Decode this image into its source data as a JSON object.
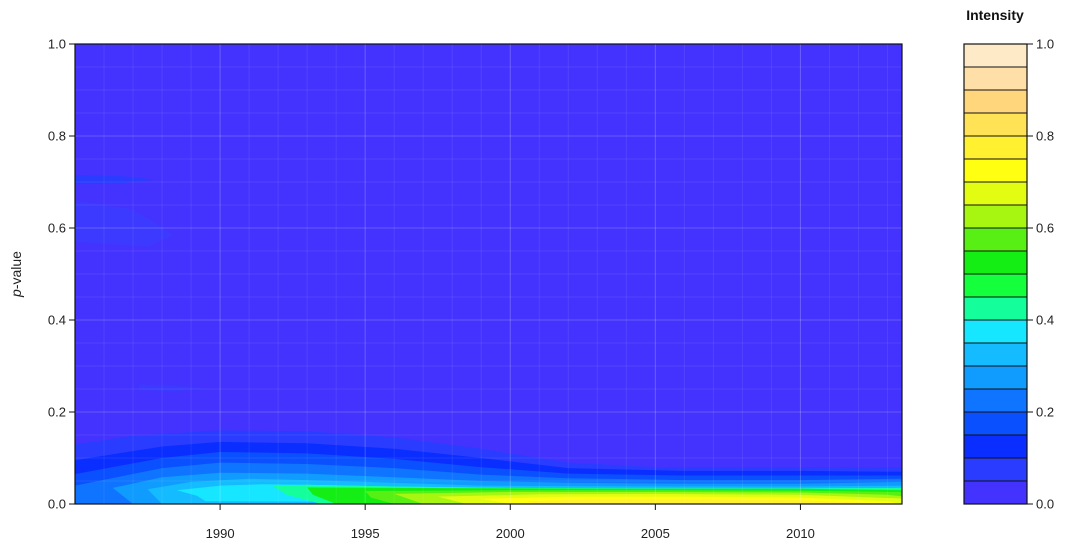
{
  "chart_data": {
    "type": "heatmap",
    "xlabel": "",
    "ylabel": "p-value",
    "ylabel_italic_part": "p",
    "ylabel_rest": "-value",
    "xlim": [
      1985,
      2013.5
    ],
    "ylim": [
      0,
      1
    ],
    "x_ticks": [
      "1990",
      "1995",
      "2000",
      "2005",
      "2010"
    ],
    "x_tick_values": [
      1990,
      1995,
      2000,
      2005,
      2010
    ],
    "y_ticks": [
      "0.0",
      "0.2",
      "0.4",
      "0.6",
      "0.8",
      "1.0"
    ],
    "y_tick_values": [
      0,
      0.2,
      0.4,
      0.6,
      0.8,
      1.0
    ],
    "grid": true,
    "background_color": "#4433ff",
    "colorbar": {
      "title": "Intensity",
      "range": [
        0,
        1
      ],
      "tick_labels": [
        "0.0",
        "0.2",
        "0.4",
        "0.6",
        "0.8",
        "1.0"
      ],
      "tick_values": [
        0,
        0.2,
        0.4,
        0.6,
        0.8,
        1.0
      ],
      "colors": [
        "#4433ff",
        "#2a3cff",
        "#0a2eff",
        "#0a50ff",
        "#0f74ff",
        "#109bff",
        "#14bbff",
        "#16e6ff",
        "#14ff9c",
        "#14ff3c",
        "#14ee14",
        "#58f014",
        "#a6f612",
        "#e2fc12",
        "#ffff12",
        "#fff030",
        "#ffe256",
        "#ffd67c",
        "#ffdfa8",
        "#ffeac8"
      ]
    },
    "contours": [
      {
        "level": 0.05,
        "color": "#2a3cff",
        "points": [
          [
            1985,
            0.13
          ],
          [
            1987,
            0.148
          ],
          [
            1990,
            0.16
          ],
          [
            1993,
            0.158
          ],
          [
            1996,
            0.145
          ],
          [
            1999,
            0.12
          ],
          [
            2002,
            0.09
          ],
          [
            2005,
            0.08
          ],
          [
            2008,
            0.08
          ],
          [
            2011,
            0.08
          ],
          [
            2013.5,
            0.08
          ],
          [
            2013.5,
            0
          ],
          [
            1985,
            0
          ]
        ]
      },
      {
        "level": 0.05,
        "color": "#3d3aff",
        "points": [
          [
            1985,
            0.66
          ],
          [
            1987,
            0.64
          ],
          [
            1988.4,
            0.585
          ],
          [
            1987.5,
            0.56
          ],
          [
            1985,
            0.57
          ]
        ]
      },
      {
        "level": 0.05,
        "color": "#2a3cff",
        "points": [
          [
            1985,
            0.715
          ],
          [
            1986.5,
            0.713
          ],
          [
            1987.8,
            0.705
          ],
          [
            1986.5,
            0.697
          ],
          [
            1985,
            0.695
          ]
        ]
      },
      {
        "level": 0.05,
        "color": "#3d3aff",
        "points": [
          [
            1987.2,
            0.26
          ],
          [
            1988.5,
            0.257
          ],
          [
            1989.5,
            0.252
          ],
          [
            1988.5,
            0.245
          ],
          [
            1987.2,
            0.247
          ]
        ]
      },
      {
        "level": 0.1,
        "color": "#0a2eff",
        "points": [
          [
            1985,
            0.095
          ],
          [
            1988,
            0.125
          ],
          [
            1990,
            0.135
          ],
          [
            1993,
            0.132
          ],
          [
            1996,
            0.12
          ],
          [
            1999,
            0.1
          ],
          [
            2002,
            0.078
          ],
          [
            2006,
            0.072
          ],
          [
            2010,
            0.072
          ],
          [
            2013.5,
            0.07
          ],
          [
            2013.5,
            0
          ],
          [
            1985,
            0
          ]
        ]
      },
      {
        "level": 0.15,
        "color": "#0a50ff",
        "points": [
          [
            1985,
            0.065
          ],
          [
            1988,
            0.1
          ],
          [
            1990,
            0.113
          ],
          [
            1993,
            0.11
          ],
          [
            1996,
            0.098
          ],
          [
            1999,
            0.08
          ],
          [
            2002,
            0.066
          ],
          [
            2006,
            0.062
          ],
          [
            2010,
            0.062
          ],
          [
            2013.5,
            0.062
          ],
          [
            2013.5,
            0
          ],
          [
            1985,
            0
          ]
        ]
      },
      {
        "level": 0.2,
        "color": "#0f74ff",
        "points": [
          [
            1985,
            0.04
          ],
          [
            1988,
            0.078
          ],
          [
            1990,
            0.09
          ],
          [
            1993,
            0.087
          ],
          [
            1996,
            0.078
          ],
          [
            1999,
            0.064
          ],
          [
            2002,
            0.056
          ],
          [
            2006,
            0.052
          ],
          [
            2010,
            0.052
          ],
          [
            2013.5,
            0.055
          ],
          [
            2013.5,
            0
          ],
          [
            1985,
            0
          ]
        ]
      },
      {
        "level": 0.3,
        "color": "#109bff",
        "points": [
          [
            1986.3,
            0.035
          ],
          [
            1988,
            0.058
          ],
          [
            1990,
            0.068
          ],
          [
            1993,
            0.066
          ],
          [
            1996,
            0.058
          ],
          [
            1999,
            0.05
          ],
          [
            2002,
            0.046
          ],
          [
            2006,
            0.044
          ],
          [
            2010,
            0.044
          ],
          [
            2013.5,
            0.048
          ],
          [
            2013.5,
            0
          ],
          [
            1987,
            0
          ]
        ]
      },
      {
        "level": 0.35,
        "color": "#14bbff",
        "points": [
          [
            1987.5,
            0.032
          ],
          [
            1989,
            0.048
          ],
          [
            1991,
            0.055
          ],
          [
            1993,
            0.052
          ],
          [
            1996,
            0.046
          ],
          [
            1999,
            0.04
          ],
          [
            2002,
            0.039
          ],
          [
            2006,
            0.038
          ],
          [
            2010,
            0.038
          ],
          [
            2013.5,
            0.04
          ],
          [
            2013.5,
            0
          ],
          [
            1988,
            0
          ]
        ]
      },
      {
        "level": 0.4,
        "color": "#16e6ff",
        "points": [
          [
            1988.5,
            0.03
          ],
          [
            1990,
            0.04
          ],
          [
            1991.5,
            0.043
          ],
          [
            1993,
            0.042
          ],
          [
            1996,
            0.038
          ],
          [
            2000,
            0.035
          ],
          [
            2005,
            0.034
          ],
          [
            2010,
            0.034
          ],
          [
            2013.5,
            0.035
          ],
          [
            2013.5,
            0
          ],
          [
            1989.5,
            0.006
          ],
          [
            1989.2,
            0.018
          ]
        ]
      },
      {
        "level": 0.45,
        "color": "#14ff9c",
        "points": [
          [
            1991.8,
            0.04
          ],
          [
            1993,
            0.042
          ],
          [
            1996,
            0.038
          ],
          [
            2000,
            0.035
          ],
          [
            2005,
            0.034
          ],
          [
            2010,
            0.034
          ],
          [
            2013.5,
            0.035
          ],
          [
            2013.5,
            0
          ],
          [
            1993.5,
            0
          ],
          [
            1992.3,
            0.02
          ]
        ]
      },
      {
        "level": 0.5,
        "color": "#14ee14",
        "points": [
          [
            1993,
            0.036
          ],
          [
            1996,
            0.035
          ],
          [
            2000,
            0.034
          ],
          [
            2005,
            0.033
          ],
          [
            2010,
            0.033
          ],
          [
            2013.5,
            0.03
          ],
          [
            2013.5,
            0
          ],
          [
            1994,
            0
          ],
          [
            1993.2,
            0.02
          ]
        ]
      },
      {
        "level": 0.55,
        "color": "#58f014",
        "points": [
          [
            1995,
            0.028
          ],
          [
            2000,
            0.03
          ],
          [
            2005,
            0.03
          ],
          [
            2010,
            0.029
          ],
          [
            2013.5,
            0.026
          ],
          [
            2013.5,
            0
          ],
          [
            1996,
            0
          ],
          [
            1995.2,
            0.014
          ]
        ]
      },
      {
        "level": 0.6,
        "color": "#a6f612",
        "points": [
          [
            1996,
            0.022
          ],
          [
            2000,
            0.026
          ],
          [
            2005,
            0.026
          ],
          [
            2010,
            0.025
          ],
          [
            2013,
            0.02
          ],
          [
            2013.5,
            0.017
          ],
          [
            2013.5,
            0
          ],
          [
            1997,
            0
          ]
        ]
      },
      {
        "level": 0.65,
        "color": "#e2fc12",
        "points": [
          [
            1997.5,
            0.016
          ],
          [
            2001,
            0.021
          ],
          [
            2005,
            0.022
          ],
          [
            2010,
            0.02
          ],
          [
            2013.5,
            0.012
          ],
          [
            2013.5,
            0
          ],
          [
            1998.5,
            0
          ]
        ]
      },
      {
        "level": 0.7,
        "color": "#ffff12",
        "points": [
          [
            1999,
            0.011
          ],
          [
            2002,
            0.016
          ],
          [
            2006,
            0.016
          ],
          [
            2010,
            0.014
          ],
          [
            2013,
            0.006
          ],
          [
            2013.5,
            0
          ],
          [
            2000,
            0
          ]
        ]
      },
      {
        "level": 0.75,
        "color": "#fff030",
        "points": [
          [
            2000.5,
            0.006
          ],
          [
            2003,
            0.01
          ],
          [
            2006,
            0.01
          ],
          [
            2010,
            0.008
          ],
          [
            2012.5,
            0.002
          ],
          [
            2012,
            0
          ],
          [
            2001,
            0
          ]
        ]
      }
    ]
  }
}
